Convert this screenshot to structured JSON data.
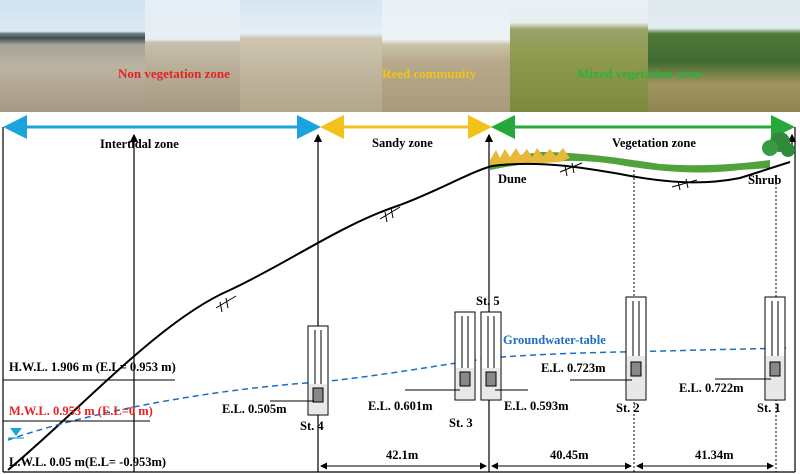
{
  "photos": {
    "captions": [
      {
        "text": "Non vegetation zone",
        "color": "#e52222"
      },
      {
        "text": "Reed community",
        "color": "#f0c419"
      },
      {
        "text": "Mixed vegetation zone",
        "color": "#2bb33a"
      }
    ]
  },
  "zones": [
    {
      "label": "Intertidal zone",
      "color": "#1aa3dc"
    },
    {
      "label": "Sandy zone",
      "color": "#f2c21a"
    },
    {
      "label": "Vegetation zone",
      "color": "#26a83a"
    }
  ],
  "features": {
    "dune": "Dune",
    "shrub": "Shrub"
  },
  "groundwater_label": "Groundwater-table",
  "water_levels": [
    {
      "text": "H.W.L. 1.906 m (E.L= 0.953 m)",
      "color": "#000000"
    },
    {
      "text": "M.W.L. 0.953 m (E.L=0 m)",
      "color": "#e52222"
    },
    {
      "text": "L.W.L. 0.05 m(E.L= -0.953m)",
      "color": "#000000"
    }
  ],
  "stations": [
    {
      "name": "St. 4",
      "elevation": "E.L. 0.505m"
    },
    {
      "name": "St. 3",
      "elevation": "E.L. 0.601m"
    },
    {
      "name": "St. 5",
      "elevation": "E.L. 0.593m"
    },
    {
      "name": "St. 2",
      "elevation": "E.L. 0.723m"
    },
    {
      "name": "St. 1",
      "elevation": "E.L. 0.722m"
    }
  ],
  "distances": [
    "42.1m",
    "40.45m",
    "41.34m"
  ],
  "colors": {
    "groundwater": "#1a6fc4",
    "profile": "#000000"
  }
}
